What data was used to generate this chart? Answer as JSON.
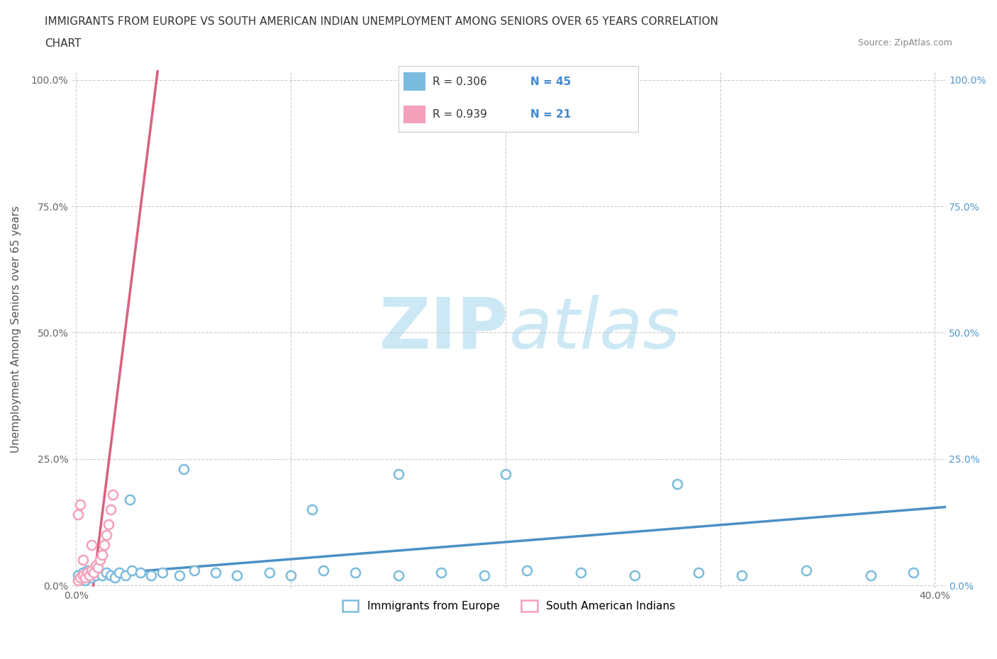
{
  "title_line1": "IMMIGRANTS FROM EUROPE VS SOUTH AMERICAN INDIAN UNEMPLOYMENT AMONG SENIORS OVER 65 YEARS CORRELATION",
  "title_line2": "CHART",
  "source": "Source: ZipAtlas.com",
  "ylabel": "Unemployment Among Seniors over 65 years",
  "xlim": [
    -0.002,
    0.405
  ],
  "ylim": [
    -0.005,
    1.02
  ],
  "xticks": [
    0.0,
    0.1,
    0.2,
    0.3,
    0.4
  ],
  "xticklabels": [
    "0.0%",
    "",
    "",
    "",
    "40.0%"
  ],
  "yticks": [
    0.0,
    0.25,
    0.5,
    0.75,
    1.0
  ],
  "yticklabels_left": [
    "0.0%",
    "25.0%",
    "50.0%",
    "75.0%",
    "100.0%"
  ],
  "yticklabels_right": [
    "0.0%",
    "25.0%",
    "50.0%",
    "75.0%",
    "100.0%"
  ],
  "blue_R": 0.306,
  "blue_N": 45,
  "pink_R": 0.939,
  "pink_N": 21,
  "blue_color": "#7bbcde",
  "pink_color": "#f4a0bb",
  "blue_line_color": "#4a90c4",
  "pink_line_color": "#d95f7f",
  "watermark_color": "#cde8f5",
  "blue_x": [
    0.001,
    0.002,
    0.003,
    0.004,
    0.005,
    0.006,
    0.007,
    0.008,
    0.009,
    0.01,
    0.012,
    0.014,
    0.016,
    0.018,
    0.02,
    0.023,
    0.026,
    0.03,
    0.035,
    0.04,
    0.048,
    0.055,
    0.065,
    0.075,
    0.09,
    0.1,
    0.115,
    0.13,
    0.15,
    0.17,
    0.19,
    0.21,
    0.235,
    0.26,
    0.29,
    0.31,
    0.34,
    0.37,
    0.39,
    0.15,
    0.2,
    0.28,
    0.11,
    0.05,
    0.025
  ],
  "blue_y": [
    0.02,
    0.015,
    0.025,
    0.01,
    0.03,
    0.02,
    0.015,
    0.025,
    0.02,
    0.03,
    0.02,
    0.025,
    0.02,
    0.015,
    0.025,
    0.02,
    0.03,
    0.025,
    0.02,
    0.025,
    0.02,
    0.03,
    0.025,
    0.02,
    0.025,
    0.02,
    0.03,
    0.025,
    0.02,
    0.025,
    0.02,
    0.03,
    0.025,
    0.02,
    0.025,
    0.02,
    0.03,
    0.02,
    0.025,
    0.22,
    0.22,
    0.2,
    0.15,
    0.23,
    0.17
  ],
  "pink_x": [
    0.001,
    0.002,
    0.003,
    0.004,
    0.005,
    0.006,
    0.007,
    0.008,
    0.009,
    0.01,
    0.011,
    0.012,
    0.013,
    0.014,
    0.015,
    0.016,
    0.017,
    0.001,
    0.002,
    0.003,
    0.007
  ],
  "pink_y": [
    0.01,
    0.015,
    0.02,
    0.015,
    0.025,
    0.02,
    0.03,
    0.025,
    0.04,
    0.035,
    0.05,
    0.06,
    0.08,
    0.1,
    0.12,
    0.15,
    0.18,
    0.14,
    0.16,
    0.05,
    0.08
  ],
  "pink_trend_x0": 0.008,
  "pink_trend_x1": 0.038,
  "pink_trend_y0": 0.0,
  "pink_trend_y1": 1.02,
  "blue_trend_x0": 0.0,
  "blue_trend_x1": 0.405,
  "blue_trend_y0": 0.018,
  "blue_trend_y1": 0.155
}
